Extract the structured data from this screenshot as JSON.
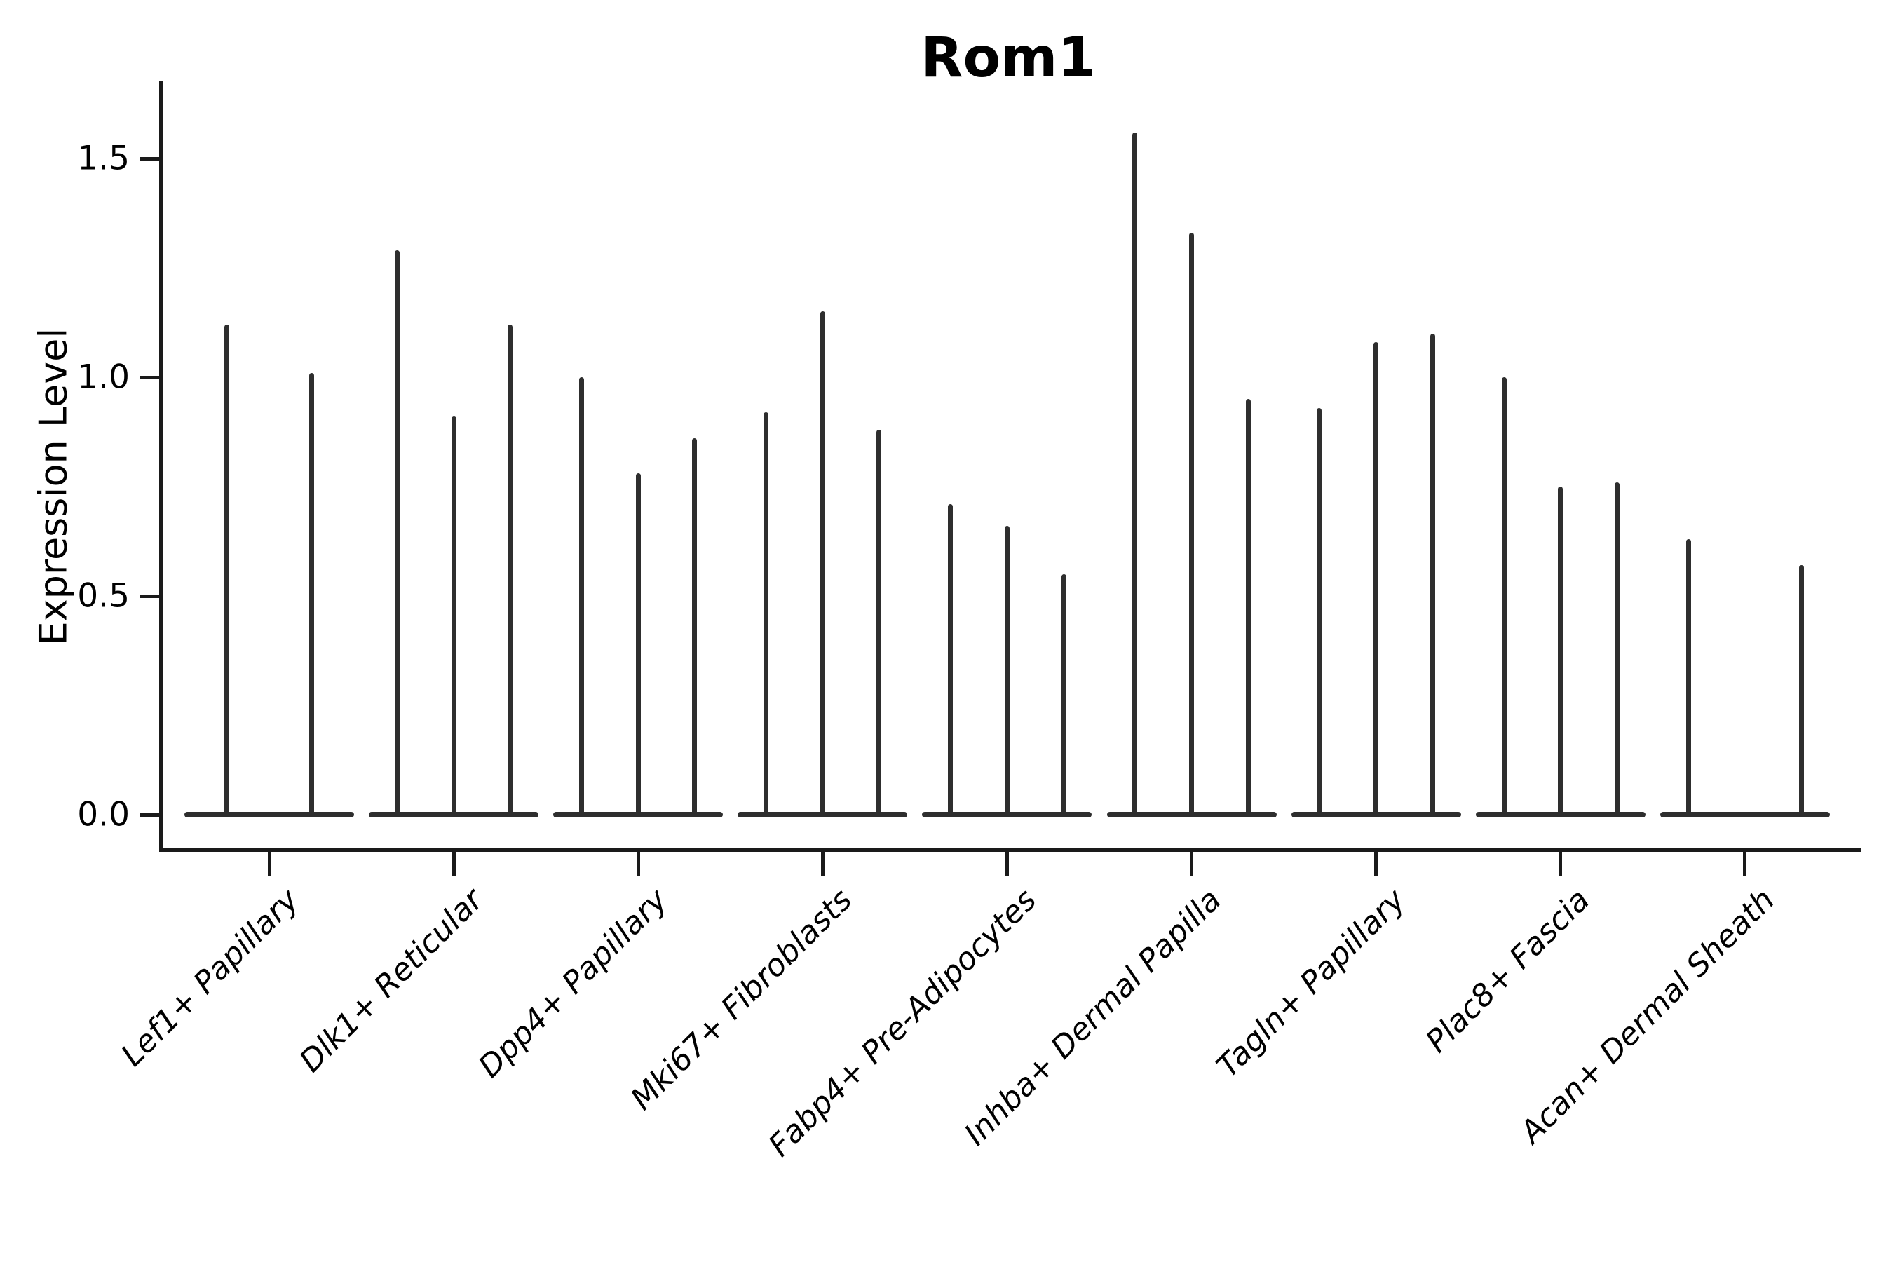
{
  "chart_data": {
    "type": "violin",
    "title": "Rom1",
    "xlabel": "",
    "ylabel": "Expression Level",
    "yticks": [
      "0.0",
      "0.5",
      "1.0",
      "1.5"
    ],
    "ytick_values": [
      0.0,
      0.5,
      1.0,
      1.5
    ],
    "ylim": [
      -0.08,
      1.68
    ],
    "grid": "off",
    "legend": "none",
    "line_color": "#2e2e2e",
    "axis_color": "#1a1a1a",
    "categories": [
      "Lef1+ Papillary",
      "Dlk1+ Reticular",
      "Dpp4+ Papillary",
      "Mki67+ Fibroblasts",
      "Fabp4+ Pre-Adipocytes",
      "Inhba+ Dermal Papilla",
      "Tagln+ Papillary",
      "Plac8+ Fascia",
      "Acan+ Dermal Sheath"
    ],
    "series_note": "each category shows thin collapsed violins; values are max expression spike heights, 0 = flat violin at baseline",
    "groups": [
      {
        "category": "Lef1+ Papillary",
        "violins": [
          1.12,
          1.01
        ]
      },
      {
        "category": "Dlk1+ Reticular",
        "violins": [
          1.29,
          0.91,
          1.12
        ]
      },
      {
        "category": "Dpp4+ Papillary",
        "violins": [
          1.0,
          0.78,
          0.86
        ]
      },
      {
        "category": "Mki67+ Fibroblasts",
        "violins": [
          0.92,
          1.15,
          0.88
        ]
      },
      {
        "category": "Fabp4+ Pre-Adipocytes",
        "violins": [
          0.71,
          0.66,
          0.55
        ]
      },
      {
        "category": "Inhba+ Dermal Papilla",
        "violins": [
          1.56,
          1.33,
          0.95
        ]
      },
      {
        "category": "Tagln+ Papillary",
        "violins": [
          0.93,
          1.08,
          1.1
        ]
      },
      {
        "category": "Plac8+ Fascia",
        "violins": [
          1.0,
          0.75,
          0.76
        ]
      },
      {
        "category": "Acan+ Dermal Sheath",
        "violins": [
          0.63,
          0.0,
          0.57
        ]
      }
    ]
  }
}
